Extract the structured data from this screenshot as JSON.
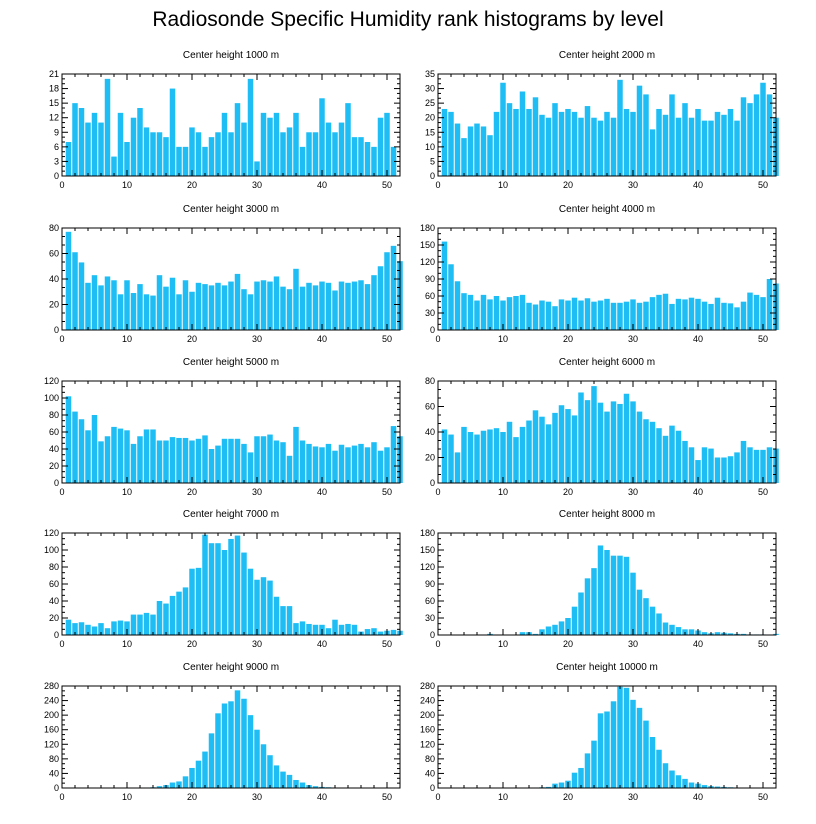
{
  "title": "Radiosonde Specific Humidity rank histograms by level",
  "colors": {
    "bar": "#1EBEF5",
    "axis": "#000000"
  },
  "chart_data": [
    {
      "type": "bar",
      "title": "Center height 1000 m",
      "xlim": [
        0,
        52
      ],
      "ylim": [
        0,
        21
      ],
      "xticks": [
        0,
        10,
        20,
        30,
        40,
        50
      ],
      "yticks": [
        0,
        3,
        6,
        9,
        12,
        15,
        18,
        21
      ],
      "values": [
        7,
        15,
        14,
        11,
        13,
        11,
        20,
        4,
        13,
        7,
        12,
        14,
        10,
        9,
        9,
        8,
        18,
        6,
        6,
        10,
        9,
        6,
        8,
        9,
        13,
        9,
        15,
        11,
        20,
        3,
        13,
        12,
        13,
        9,
        10,
        13,
        6,
        9,
        9,
        16,
        11,
        9,
        11,
        15,
        8,
        8,
        7,
        6,
        12,
        13,
        6
      ]
    },
    {
      "type": "bar",
      "title": "Center height 2000 m",
      "xlim": [
        0,
        52
      ],
      "ylim": [
        0,
        35
      ],
      "xticks": [
        0,
        10,
        20,
        30,
        40,
        50
      ],
      "yticks": [
        0,
        5,
        10,
        15,
        20,
        25,
        30,
        35
      ],
      "values": [
        23,
        22,
        18,
        13,
        17,
        18,
        17,
        14,
        22,
        32,
        25,
        23,
        29,
        23,
        27,
        21,
        20,
        25,
        22,
        23,
        22,
        20,
        24,
        20,
        19,
        22,
        20,
        33,
        23,
        22,
        31,
        28,
        16,
        23,
        21,
        28,
        20,
        25,
        20,
        23,
        19,
        19,
        22,
        21,
        23,
        19,
        27,
        25,
        28,
        32,
        28,
        20
      ]
    },
    {
      "type": "bar",
      "title": "Center height 3000 m",
      "xlim": [
        0,
        52
      ],
      "ylim": [
        0,
        80
      ],
      "xticks": [
        0,
        10,
        20,
        30,
        40,
        50
      ],
      "yticks": [
        0,
        20,
        40,
        60,
        80
      ],
      "values": [
        77,
        61,
        53,
        37,
        43,
        35,
        42,
        39,
        28,
        39,
        29,
        36,
        28,
        27,
        43,
        34,
        41,
        28,
        39,
        30,
        37,
        36,
        35,
        37,
        35,
        38,
        44,
        32,
        28,
        38,
        39,
        38,
        42,
        34,
        32,
        48,
        34,
        37,
        35,
        38,
        37,
        31,
        38,
        37,
        38,
        39,
        36,
        43,
        50,
        61,
        66,
        54
      ]
    },
    {
      "type": "bar",
      "title": "Center height 4000 m",
      "xlim": [
        0,
        52
      ],
      "ylim": [
        0,
        180
      ],
      "xticks": [
        0,
        10,
        20,
        30,
        40,
        50
      ],
      "yticks": [
        0,
        30,
        60,
        90,
        120,
        150,
        180
      ],
      "values": [
        156,
        116,
        86,
        65,
        62,
        52,
        62,
        54,
        60,
        52,
        58,
        60,
        62,
        48,
        45,
        52,
        50,
        42,
        54,
        52,
        57,
        52,
        56,
        50,
        52,
        55,
        48,
        48,
        50,
        54,
        48,
        50,
        58,
        62,
        64,
        46,
        55,
        54,
        57,
        55,
        50,
        46,
        57,
        48,
        47,
        40,
        50,
        66,
        62,
        58,
        90,
        82
      ]
    },
    {
      "type": "bar",
      "title": "Center height 5000 m",
      "xlim": [
        0,
        52
      ],
      "ylim": [
        0,
        120
      ],
      "xticks": [
        0,
        10,
        20,
        30,
        40,
        50
      ],
      "yticks": [
        0,
        20,
        40,
        60,
        80,
        100,
        120
      ],
      "values": [
        102,
        84,
        75,
        62,
        80,
        49,
        55,
        66,
        64,
        62,
        46,
        55,
        63,
        63,
        50,
        50,
        54,
        53,
        53,
        50,
        52,
        56,
        40,
        44,
        52,
        52,
        52,
        46,
        36,
        55,
        55,
        57,
        50,
        48,
        32,
        66,
        50,
        46,
        43,
        42,
        46,
        38,
        45,
        42,
        44,
        46,
        42,
        48,
        38,
        42,
        67,
        55
      ]
    },
    {
      "type": "bar",
      "title": "Center height 6000 m",
      "xlim": [
        0,
        52
      ],
      "ylim": [
        0,
        80
      ],
      "xticks": [
        0,
        10,
        20,
        30,
        40,
        50
      ],
      "yticks": [
        0,
        20,
        40,
        60,
        80
      ],
      "values": [
        42,
        38,
        24,
        44,
        40,
        38,
        41,
        42,
        43,
        40,
        48,
        36,
        44,
        49,
        57,
        52,
        46,
        55,
        61,
        58,
        53,
        71,
        65,
        76,
        63,
        56,
        64,
        62,
        70,
        64,
        56,
        50,
        48,
        43,
        37,
        45,
        41,
        33,
        28,
        18,
        28,
        27,
        20,
        20,
        21,
        24,
        33,
        28,
        26,
        26,
        28,
        27
      ]
    },
    {
      "type": "bar",
      "title": "Center height 7000 m",
      "xlim": [
        0,
        52
      ],
      "ylim": [
        0,
        120
      ],
      "xticks": [
        0,
        10,
        20,
        30,
        40,
        50
      ],
      "yticks": [
        0,
        20,
        40,
        60,
        80,
        100,
        120
      ],
      "values": [
        18,
        14,
        15,
        12,
        10,
        14,
        8,
        16,
        17,
        16,
        24,
        24,
        26,
        24,
        40,
        37,
        46,
        51,
        56,
        78,
        79,
        118,
        108,
        108,
        100,
        113,
        117,
        97,
        78,
        65,
        68,
        64,
        45,
        34,
        34,
        14,
        16,
        13,
        12,
        12,
        8,
        18,
        12,
        13,
        12,
        4,
        7,
        8,
        4,
        5,
        6,
        5
      ]
    },
    {
      "type": "bar",
      "title": "Center height 8000 m",
      "xlim": [
        0,
        52
      ],
      "ylim": [
        0,
        180
      ],
      "xticks": [
        0,
        10,
        20,
        30,
        40,
        50
      ],
      "yticks": [
        0,
        30,
        60,
        90,
        120,
        150,
        180
      ],
      "values": [
        0,
        0,
        0,
        0,
        0,
        0,
        0,
        2,
        0,
        0,
        0,
        0,
        5,
        5,
        2,
        10,
        15,
        18,
        24,
        30,
        50,
        75,
        100,
        118,
        158,
        150,
        140,
        140,
        138,
        110,
        80,
        65,
        50,
        38,
        22,
        18,
        14,
        10,
        10,
        8,
        5,
        3,
        5,
        4,
        3,
        2,
        2,
        1,
        1,
        1,
        0,
        2
      ]
    },
    {
      "type": "bar",
      "title": "Center height 9000 m",
      "xlim": [
        0,
        52
      ],
      "ylim": [
        0,
        280
      ],
      "xticks": [
        0,
        10,
        20,
        30,
        40,
        50
      ],
      "yticks": [
        0,
        40,
        80,
        120,
        160,
        200,
        240,
        280
      ],
      "values": [
        0,
        0,
        0,
        0,
        0,
        0,
        0,
        0,
        0,
        0,
        0,
        0,
        0,
        2,
        5,
        8,
        15,
        18,
        32,
        55,
        75,
        100,
        150,
        205,
        232,
        238,
        268,
        245,
        200,
        160,
        120,
        90,
        62,
        45,
        36,
        22,
        15,
        8,
        5,
        3,
        2,
        1,
        1,
        1,
        0,
        0,
        0,
        0,
        0,
        0,
        0,
        0
      ]
    },
    {
      "type": "bar",
      "title": "Center height 10000 m",
      "xlim": [
        0,
        52
      ],
      "ylim": [
        0,
        280
      ],
      "xticks": [
        0,
        10,
        20,
        30,
        40,
        50
      ],
      "yticks": [
        0,
        40,
        80,
        120,
        160,
        200,
        240,
        280
      ],
      "values": [
        0,
        0,
        0,
        0,
        0,
        0,
        0,
        0,
        0,
        0,
        0,
        0,
        0,
        0,
        0,
        2,
        3,
        12,
        15,
        20,
        42,
        55,
        95,
        130,
        205,
        210,
        238,
        278,
        275,
        242,
        220,
        185,
        140,
        105,
        68,
        48,
        35,
        25,
        15,
        12,
        8,
        5,
        4,
        3,
        2,
        1,
        1,
        0,
        0,
        0,
        0,
        0
      ]
    }
  ]
}
